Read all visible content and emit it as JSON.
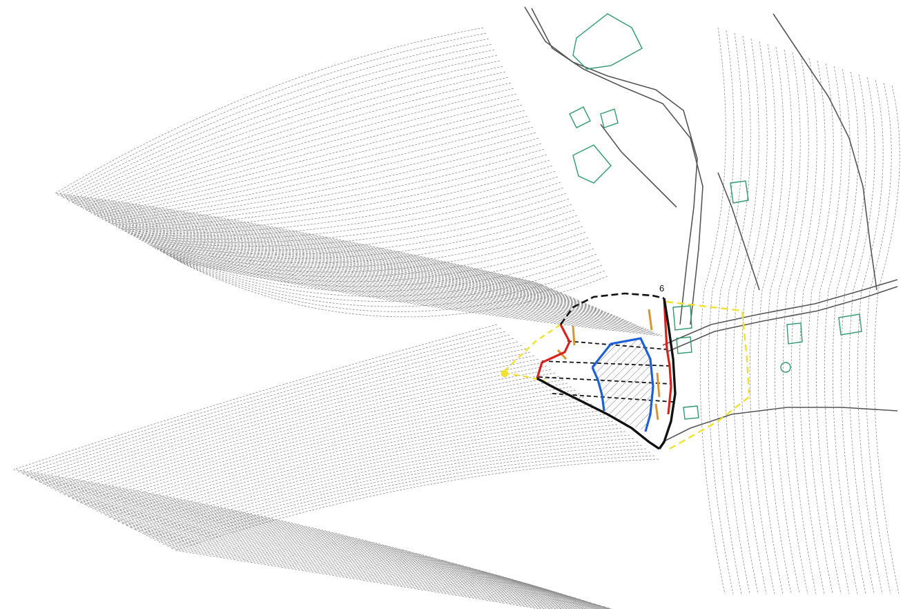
{
  "map": {
    "labels": {
      "section_number": "6"
    },
    "colors": {
      "contour": "#8c8c8c",
      "road": "#555555",
      "building": "#2e9a6a",
      "boundary_outer": "#111111",
      "scarp": "#d8221e",
      "crack": "#d99530",
      "core_zone": "#1f5fd6",
      "influence_zone": "#f2e02a",
      "hatch": "#555555"
    },
    "features": [
      "contour-lines",
      "roads",
      "buildings",
      "landslide-boundary",
      "main-scarp",
      "tension-cracks",
      "core-deformation-zone",
      "influence-zone",
      "profile-lines"
    ]
  }
}
